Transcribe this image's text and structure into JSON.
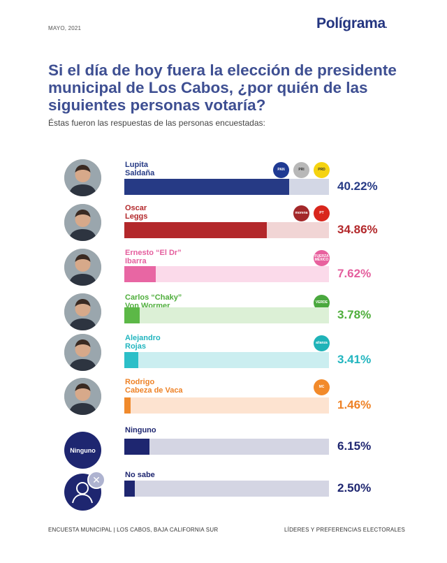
{
  "header": {
    "date": "MAYO, 2021",
    "brand": "Polígrama",
    "brand_dot": "."
  },
  "title": "Si el día de hoy fuera la elección de presidente municipal de Los Cabos, ¿por quién de las siguientes personas votaría?",
  "subtitle": "Éstas fueron las respuestas de las personas encuestadas:",
  "chart_data": {
    "type": "bar",
    "orientation": "horizontal",
    "title": "Si el día de hoy fuera la elección de presidente municipal de Los Cabos, ¿por quién de las siguientes personas votaría?",
    "xlim": [
      0,
      50
    ],
    "unit": "%",
    "categories": [
      "Lupita Saldaña",
      "Oscar Leggs",
      "Ernesto \"El Dr\" Ibarra",
      "Carlos \"Chaky\" Von Wormer",
      "Alejandro Rojas",
      "Rodrigo Cabeza de Vaca",
      "Ninguno",
      "No sabe"
    ],
    "values": [
      40.22,
      34.86,
      7.62,
      3.78,
      3.41,
      1.46,
      6.15,
      2.5
    ],
    "rows": [
      {
        "name1": "Lupita",
        "name2": "Saldaña",
        "value": 40.22,
        "label": "40.22%",
        "color": "#263a85",
        "track": "#d3d7e5",
        "pct_color": "#263a85",
        "avatar": "photo",
        "parties": [
          {
            "text": "PAN",
            "bg": "#1f3a93"
          },
          {
            "text": "PRI",
            "bg": "#b8b8b8"
          },
          {
            "text": "PRD",
            "bg": "#f5d310"
          }
        ]
      },
      {
        "name1": "Oscar",
        "name2": "Leggs",
        "value": 34.86,
        "label": "34.86%",
        "color": "#b3282b",
        "track": "#f1d5d5",
        "pct_color": "#b3282b",
        "avatar": "photo",
        "parties": [
          {
            "text": "morena",
            "bg": "#a3282a"
          },
          {
            "text": "PT",
            "bg": "#d9261c"
          }
        ]
      },
      {
        "name1": "Ernesto “El Dr”",
        "name2": "Ibarra",
        "value": 7.62,
        "label": "7.62%",
        "color": "#e866a3",
        "track": "#fbdaea",
        "pct_color": "#e45e9d",
        "avatar": "photo",
        "parties": [
          {
            "text": "FUERZA MÉXICO",
            "bg": "#e8619e"
          }
        ]
      },
      {
        "name1": "Carlos “Chaky”",
        "name2": "Von Wormer",
        "value": 3.78,
        "label": "3.78%",
        "color": "#5cb847",
        "track": "#dcf0d6",
        "pct_color": "#4fae3c",
        "avatar": "photo",
        "parties": [
          {
            "text": "VERDE",
            "bg": "#4aa83e"
          }
        ]
      },
      {
        "name1": "Alejandro",
        "name2": "Rojas",
        "value": 3.41,
        "label": "3.41%",
        "color": "#2cbfc8",
        "track": "#cbeef0",
        "pct_color": "#22b5bf",
        "avatar": "photo",
        "parties": [
          {
            "text": "alianza",
            "bg": "#1fb3b8"
          }
        ]
      },
      {
        "name1": "Rodrigo",
        "name2": "Cabeza de Vaca",
        "value": 1.46,
        "label": "1.46%",
        "color": "#f08a2c",
        "track": "#fde3d0",
        "pct_color": "#ee8226",
        "avatar": "photo",
        "parties": [
          {
            "text": "MC",
            "bg": "#f28a2a"
          }
        ]
      },
      {
        "name1": "Ninguno",
        "name2": "",
        "value": 6.15,
        "label": "6.15%",
        "color": "#1e2670",
        "track": "#d4d5e3",
        "pct_color": "#1e2670",
        "avatar": "ninguno",
        "avatar_text": "Ninguno",
        "parties": []
      },
      {
        "name1": "No sabe",
        "name2": "",
        "value": 2.5,
        "label": "2.50%",
        "color": "#1e2670",
        "track": "#d4d5e3",
        "pct_color": "#1e2670",
        "avatar": "nosabe",
        "parties": []
      }
    ]
  },
  "footer": {
    "left": "ENCUESTA MUNICIPAL | LOS CABOS, BAJA CALIFORNIA SUR",
    "right": "LÍDERES Y PREFERENCIAS ELECTORALES"
  }
}
